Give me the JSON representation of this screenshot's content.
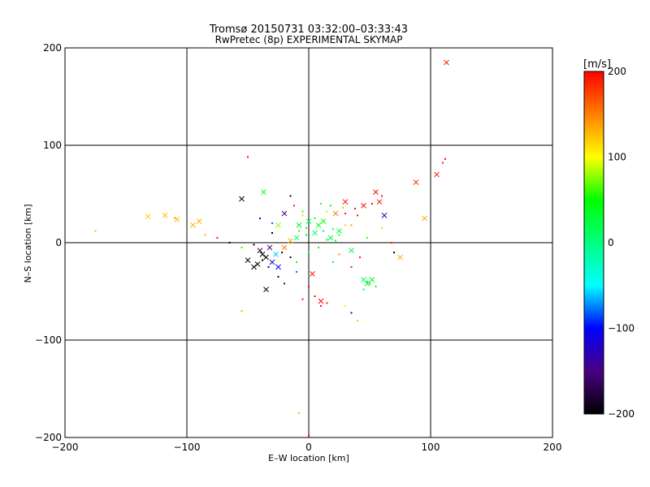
{
  "chart_data": {
    "type": "scatter",
    "title": "Tromsø 20150731 03:32:00–03:33:43",
    "subtitle": "RwPretec (8p) EXPERIMENTAL SKYMAP",
    "xlabel": "E–W location [km]",
    "ylabel": "N–S location [km]",
    "xlim": [
      -200,
      200
    ],
    "ylim": [
      -200,
      200
    ],
    "xticks": [
      -200,
      -100,
      0,
      100,
      200
    ],
    "yticks": [
      -200,
      -100,
      0,
      100,
      200
    ],
    "xtick_labels": [
      "−200",
      "−100",
      "0",
      "100",
      "200"
    ],
    "ytick_labels": [
      "200",
      "100",
      "0",
      "−100",
      "−200"
    ],
    "grid": true,
    "colorbar": {
      "label": "[m/s]",
      "range": [
        -200,
        200
      ],
      "ticks": [
        200,
        100,
        0,
        -100,
        -200
      ],
      "tick_labels": [
        "200",
        "100",
        "0",
        "−100",
        "−200"
      ],
      "colormap": [
        "#000000",
        "#4b0082",
        "#0000ff",
        "#00ffff",
        "#00ff80",
        "#00ff00",
        "#ffff00",
        "#ff8000",
        "#ff0000"
      ]
    },
    "series": [
      {
        "marker": "x",
        "points": [
          [
            113,
            185,
            190
          ],
          [
            105,
            70,
            185
          ],
          [
            88,
            62,
            180
          ],
          [
            -37,
            52,
            40
          ],
          [
            -55,
            45,
            -200
          ],
          [
            -90,
            22,
            130
          ],
          [
            -95,
            18,
            130
          ],
          [
            -108,
            24,
            130
          ],
          [
            -118,
            28,
            125
          ],
          [
            -132,
            27,
            120
          ],
          [
            -38,
            -12,
            -190
          ],
          [
            -35,
            -15,
            -200
          ],
          [
            -40,
            -8,
            -180
          ],
          [
            -32,
            -5,
            -150
          ],
          [
            -30,
            -20,
            -120
          ],
          [
            -42,
            -22,
            -200
          ],
          [
            -27,
            -12,
            -60
          ],
          [
            -50,
            -18,
            -200
          ],
          [
            -20,
            -5,
            150
          ],
          [
            -15,
            2,
            130
          ],
          [
            0,
            22,
            20
          ],
          [
            8,
            18,
            30
          ],
          [
            12,
            22,
            40
          ],
          [
            5,
            10,
            10
          ],
          [
            18,
            5,
            30
          ],
          [
            -8,
            18,
            40
          ],
          [
            -25,
            18,
            80
          ],
          [
            22,
            30,
            150
          ],
          [
            30,
            42,
            190
          ],
          [
            45,
            38,
            195
          ],
          [
            55,
            52,
            195
          ],
          [
            58,
            42,
            190
          ],
          [
            62,
            28,
            -140
          ],
          [
            35,
            -8,
            20
          ],
          [
            48,
            -42,
            30
          ],
          [
            52,
            -38,
            40
          ],
          [
            45,
            -38,
            20
          ],
          [
            3,
            -32,
            190
          ],
          [
            10,
            -60,
            195
          ],
          [
            -35,
            -48,
            -200
          ],
          [
            -10,
            5,
            10
          ],
          [
            25,
            12,
            30
          ],
          [
            95,
            25,
            130
          ],
          [
            75,
            -15,
            130
          ],
          [
            -45,
            -25,
            -200
          ],
          [
            -25,
            -25,
            -100
          ],
          [
            -20,
            30,
            -150
          ]
        ]
      },
      {
        "marker": "dot",
        "points": [
          [
            110,
            82,
            195
          ],
          [
            112,
            86,
            195
          ],
          [
            -50,
            88,
            195
          ],
          [
            -110,
            25,
            130
          ],
          [
            -175,
            12,
            130
          ],
          [
            -30,
            20,
            -80
          ],
          [
            -40,
            25,
            -120
          ],
          [
            -12,
            38,
            190
          ],
          [
            -15,
            48,
            -200
          ],
          [
            -5,
            32,
            60
          ],
          [
            10,
            40,
            60
          ],
          [
            18,
            38,
            40
          ],
          [
            30,
            30,
            190
          ],
          [
            38,
            35,
            195
          ],
          [
            52,
            40,
            195
          ],
          [
            60,
            48,
            190
          ],
          [
            40,
            28,
            195
          ],
          [
            5,
            25,
            20
          ],
          [
            12,
            12,
            15
          ],
          [
            20,
            14,
            20
          ],
          [
            25,
            8,
            30
          ],
          [
            15,
            3,
            40
          ],
          [
            -2,
            8,
            50
          ],
          [
            -8,
            12,
            60
          ],
          [
            30,
            18,
            120
          ],
          [
            48,
            5,
            60
          ],
          [
            50,
            -42,
            40
          ],
          [
            55,
            -45,
            40
          ],
          [
            45,
            -48,
            30
          ],
          [
            48,
            -40,
            30
          ],
          [
            5,
            -55,
            195
          ],
          [
            10,
            -65,
            195
          ],
          [
            15,
            -62,
            190
          ],
          [
            0,
            -45,
            195
          ],
          [
            -5,
            -58,
            190
          ],
          [
            35,
            -72,
            -150
          ],
          [
            40,
            -80,
            120
          ],
          [
            30,
            -65,
            110
          ],
          [
            -45,
            -2,
            -200
          ],
          [
            -38,
            -18,
            -200
          ],
          [
            -33,
            -25,
            -180
          ],
          [
            -25,
            -35,
            -200
          ],
          [
            -20,
            -42,
            -160
          ],
          [
            -10,
            -20,
            40
          ],
          [
            20,
            -20,
            40
          ],
          [
            25,
            -12,
            150
          ],
          [
            35,
            -25,
            190
          ],
          [
            42,
            -15,
            190
          ],
          [
            70,
            -10,
            -200
          ],
          [
            68,
            0,
            190
          ],
          [
            -55,
            -5,
            60
          ],
          [
            -65,
            0,
            -200
          ],
          [
            -75,
            5,
            195
          ],
          [
            -85,
            8,
            130
          ],
          [
            -10,
            -30,
            -80
          ],
          [
            0,
            -10,
            20
          ],
          [
            8,
            -5,
            40
          ],
          [
            15,
            32,
            80
          ],
          [
            22,
            2,
            40
          ],
          [
            -2,
            15,
            30
          ],
          [
            -55,
            -70,
            130
          ],
          [
            -8,
            -175,
            130
          ],
          [
            0,
            -198,
            195
          ],
          [
            -30,
            10,
            -200
          ],
          [
            -22,
            -10,
            -180
          ],
          [
            -15,
            -15,
            -190
          ],
          [
            -5,
            28,
            120
          ],
          [
            28,
            36,
            130
          ],
          [
            35,
            18,
            140
          ],
          [
            60,
            15,
            120
          ]
        ]
      }
    ]
  }
}
